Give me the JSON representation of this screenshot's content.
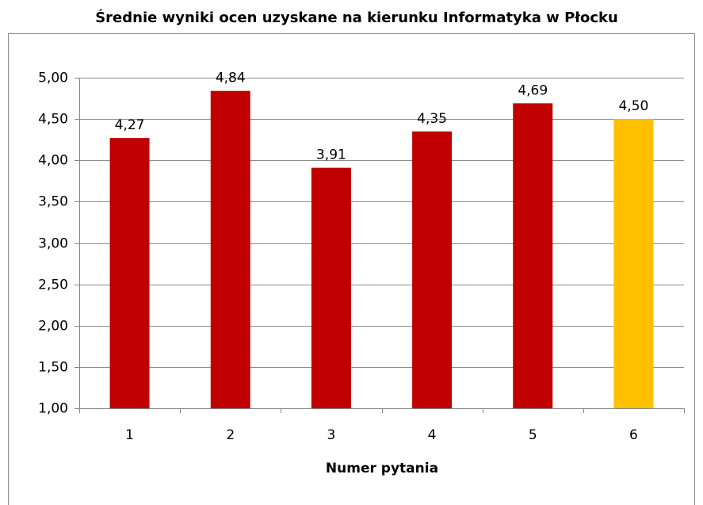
{
  "chart_data": {
    "type": "bar",
    "title": "Średnie wyniki ocen uzyskane na kierunku Informatyka w Płocku",
    "x_label": "Numer pytania",
    "categories": [
      "1",
      "2",
      "3",
      "4",
      "5",
      "6"
    ],
    "values": [
      4.27,
      4.84,
      3.91,
      4.35,
      4.69,
      4.5
    ],
    "value_labels": [
      "4,27",
      "4,84",
      "3,91",
      "4,35",
      "4,69",
      "4,50"
    ],
    "colors": [
      "#c00000",
      "#c00000",
      "#c00000",
      "#c00000",
      "#c00000",
      "#ffc000"
    ],
    "ylim": [
      1,
      5
    ],
    "yticks": [
      {
        "value": 1,
        "label": "1,00"
      },
      {
        "value": 1.5,
        "label": "1,50"
      },
      {
        "value": 2,
        "label": "2,00"
      },
      {
        "value": 2.5,
        "label": "2,50"
      },
      {
        "value": 3,
        "label": "3,00"
      },
      {
        "value": 3.5,
        "label": "3,50"
      },
      {
        "value": 4,
        "label": "4,00"
      },
      {
        "value": 4.5,
        "label": "4,50"
      },
      {
        "value": 5,
        "label": "5,00"
      }
    ],
    "grid": true
  }
}
